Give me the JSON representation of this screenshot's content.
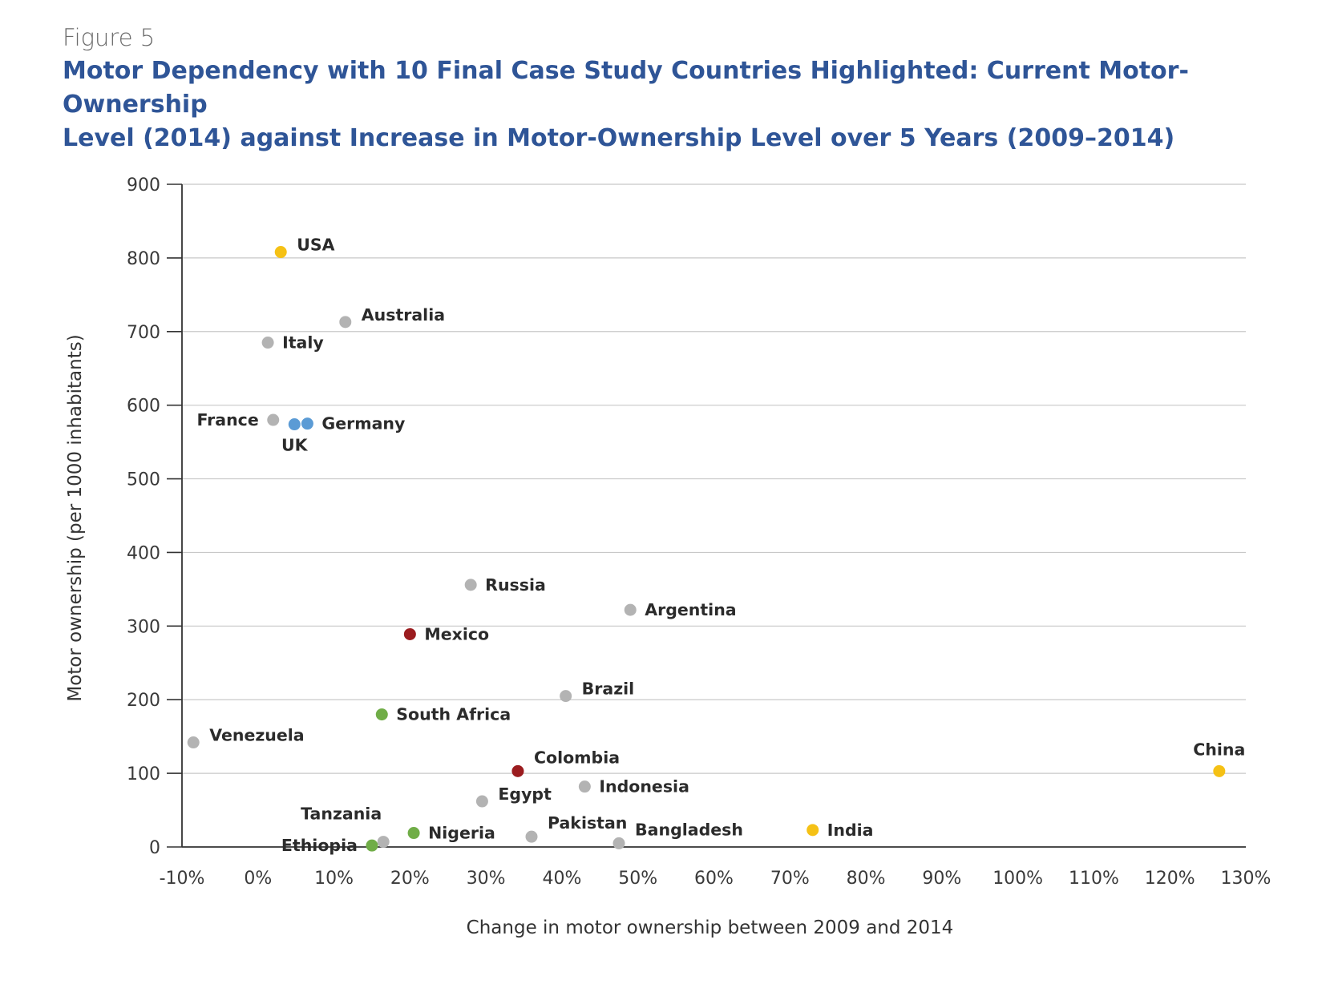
{
  "figure_label": "Figure 5",
  "title_line1": "Motor Dependency with 10 Final Case Study Countries Highlighted: Current Motor-Ownership",
  "title_line2": "Level (2014) against Increase in Motor-Ownership Level over 5 Years (2009–2014)",
  "colors": {
    "title": "#2f5597",
    "gray": "#b3b3b3",
    "yellow": "#f5c115",
    "blue": "#5b9bd5",
    "red": "#9b1c1f",
    "green": "#70ad47"
  },
  "chart_data": {
    "type": "scatter",
    "xlabel": "Change in motor ownership between 2009 and 2014",
    "ylabel": "Motor ownership (per 1000 inhabitants)",
    "xlim": [
      -10,
      130
    ],
    "ylim": [
      0,
      900
    ],
    "x_unit": "%",
    "x_ticks": [
      "-10%",
      "0%",
      "10%",
      "20%",
      "30%",
      "40%",
      "50%",
      "60%",
      "70%",
      "80%",
      "90%",
      "100%",
      "110%",
      "120%",
      "130%"
    ],
    "y_ticks": [
      "0",
      "100",
      "200",
      "300",
      "400",
      "500",
      "600",
      "700",
      "800",
      "900"
    ],
    "grid": "horizontal",
    "points": [
      {
        "label": "USA",
        "x": 3,
        "y": 808,
        "color": "yellow",
        "label_pos": "right-up"
      },
      {
        "label": "Australia",
        "x": 11.5,
        "y": 713,
        "color": "gray",
        "label_pos": "right-up"
      },
      {
        "label": "Italy",
        "x": 1.3,
        "y": 685,
        "color": "gray",
        "label_pos": "right"
      },
      {
        "label": "France",
        "x": 2,
        "y": 580,
        "color": "gray",
        "label_pos": "left"
      },
      {
        "label": "UK",
        "x": 4.8,
        "y": 574,
        "color": "blue",
        "label_pos": "below"
      },
      {
        "label": "Germany",
        "x": 6.5,
        "y": 575,
        "color": "blue",
        "label_pos": "right"
      },
      {
        "label": "Russia",
        "x": 28,
        "y": 356,
        "color": "gray",
        "label_pos": "right"
      },
      {
        "label": "Argentina",
        "x": 49,
        "y": 322,
        "color": "gray",
        "label_pos": "right"
      },
      {
        "label": "Mexico",
        "x": 20,
        "y": 289,
        "color": "red",
        "label_pos": "right"
      },
      {
        "label": "Brazil",
        "x": 40.5,
        "y": 205,
        "color": "gray",
        "label_pos": "right-up"
      },
      {
        "label": "South Africa",
        "x": 16.3,
        "y": 180,
        "color": "green",
        "label_pos": "right"
      },
      {
        "label": "Venezuela",
        "x": -8.5,
        "y": 142,
        "color": "gray",
        "label_pos": "right-up"
      },
      {
        "label": "Colombia",
        "x": 34.2,
        "y": 103,
        "color": "red",
        "label_pos": "right-above"
      },
      {
        "label": "China",
        "x": 126.5,
        "y": 103,
        "color": "yellow",
        "label_pos": "above"
      },
      {
        "label": "Indonesia",
        "x": 43,
        "y": 82,
        "color": "gray",
        "label_pos": "right"
      },
      {
        "label": "Egypt",
        "x": 29.5,
        "y": 62,
        "color": "gray",
        "label_pos": "right-up"
      },
      {
        "label": "Tanzania",
        "x": 16.5,
        "y": 7,
        "color": "gray",
        "label_pos": "left-above"
      },
      {
        "label": "Ethiopia",
        "x": 15,
        "y": 2,
        "color": "green",
        "label_pos": "left"
      },
      {
        "label": "Nigeria",
        "x": 20.5,
        "y": 19,
        "color": "green",
        "label_pos": "right"
      },
      {
        "label": "Pakistan",
        "x": 36,
        "y": 14,
        "color": "gray",
        "label_pos": "right-above"
      },
      {
        "label": "Bangladesh",
        "x": 47.5,
        "y": 5,
        "color": "gray",
        "label_pos": "right-above"
      },
      {
        "label": "India",
        "x": 73,
        "y": 23,
        "color": "yellow",
        "label_pos": "right"
      }
    ]
  }
}
